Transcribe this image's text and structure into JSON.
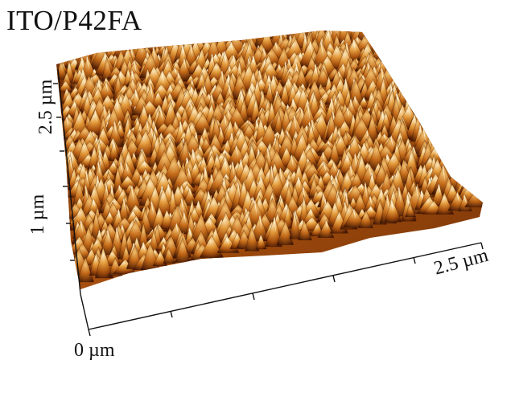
{
  "image": {
    "title": "ITO/P42FA",
    "subject": "3D AFM surface topography",
    "colors": {
      "surface_dark": "#3a1204",
      "surface_mid": "#b0520c",
      "surface_light": "#f3d8a4",
      "axis": "#111111",
      "background": "#ffffff"
    }
  },
  "axes": {
    "y_top_label": "2.5 µm",
    "y_mid_label": "1 µm",
    "x_end_label": "2.5 µm",
    "origin_label": "0 µm"
  }
}
